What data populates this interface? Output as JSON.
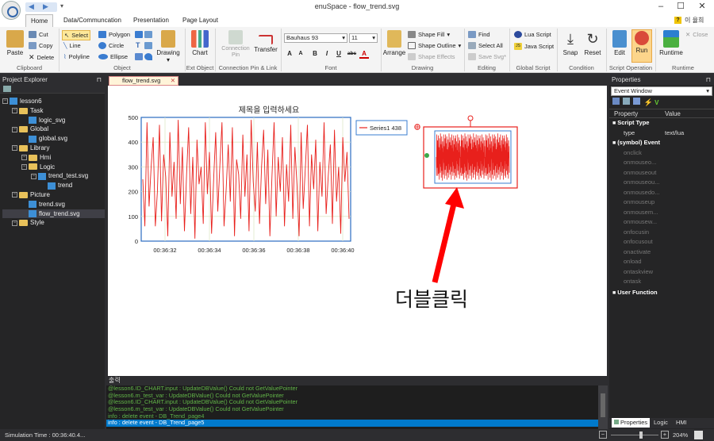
{
  "window": {
    "title": "enuSpace - flow_trend.svg",
    "user": "이 율희"
  },
  "ribbon_tabs": [
    "Home",
    "Data/Communcation",
    "Presentation",
    "Page Layout"
  ],
  "clipboard": {
    "paste": "Paste",
    "cut": "Cut",
    "copy": "Copy",
    "delete": "Delete",
    "label": "Clipboard"
  },
  "object": {
    "select": "Select",
    "line": "Line",
    "polyline": "Polyline",
    "polygon": "Polygon",
    "circle": "Circle",
    "ellipse": "Ellipse",
    "drawing": "Drawing",
    "label": "Object"
  },
  "ext_object": {
    "chart": "Chart",
    "label": "Ext Object"
  },
  "connection": {
    "pin": "Connection Pin",
    "transfer": "Transfer",
    "label": "Connection Pin & Link"
  },
  "font": {
    "family": "Bauhaus 93",
    "size": "11",
    "label": "Font",
    "grow": "A",
    "shrink": "A",
    "bold": "B",
    "italic": "I",
    "underline": "U",
    "strike": "abc",
    "color": "A"
  },
  "drawing": {
    "arrange": "Arrange",
    "shape_fill": "Shape Fill",
    "shape_outline": "Shape Outline",
    "shape_effects": "Shape Effects",
    "label": "Drawing"
  },
  "editing": {
    "find": "Find",
    "select_all": "Select All",
    "save_svg": "Save Svg*",
    "label": "Editing"
  },
  "global_script": {
    "lua": "Lua Script",
    "java": "Java Script",
    "label": "Global Script"
  },
  "condition": {
    "snap": "Snap",
    "reset": "Reset",
    "label": "Condition"
  },
  "script_op": {
    "edit": "Edit",
    "run": "Run",
    "label": "Script Operation"
  },
  "runtime": {
    "runtime": "Runtime",
    "close": "Close",
    "label": "Runtime"
  },
  "project": {
    "header": "Project Explorer",
    "tree": [
      {
        "label": "lesson6",
        "depth": 0,
        "icon": "project"
      },
      {
        "label": "Task",
        "depth": 1,
        "icon": "folder"
      },
      {
        "label": "logic_svg",
        "depth": 2,
        "icon": "file"
      },
      {
        "label": "Global",
        "depth": 1,
        "icon": "folder"
      },
      {
        "label": "global.svg",
        "depth": 2,
        "icon": "file"
      },
      {
        "label": "Library",
        "depth": 1,
        "icon": "folder"
      },
      {
        "label": "Hmi",
        "depth": 2,
        "icon": "folder"
      },
      {
        "label": "Logic",
        "depth": 2,
        "icon": "folder"
      },
      {
        "label": "trend_test.svg",
        "depth": 3,
        "icon": "file"
      },
      {
        "label": "trend",
        "depth": 4,
        "icon": "file"
      },
      {
        "label": "Picture",
        "depth": 1,
        "icon": "folder"
      },
      {
        "label": "trend.svg",
        "depth": 2,
        "icon": "file"
      },
      {
        "label": "flow_trend.svg",
        "depth": 2,
        "icon": "file"
      },
      {
        "label": "Style",
        "depth": 1,
        "icon": "folder"
      }
    ]
  },
  "doc_tab": "flow_trend.svg",
  "annotation": "더블클릭",
  "chart_data": {
    "type": "line",
    "title": "제목을 입력하세요",
    "xlabel": "",
    "ylabel": "",
    "ylim": [
      0,
      500
    ],
    "yticks": [
      0,
      100,
      200,
      300,
      400,
      500
    ],
    "xticks": [
      "00:36:32",
      "00:36:34",
      "00:36:36",
      "00:36:38",
      "00:36:40"
    ],
    "series": [
      {
        "name": "Series1 438",
        "color": "#e8201c",
        "values": [
          250,
          60,
          480,
          140,
          300,
          420,
          60,
          200,
          470,
          80,
          350,
          260,
          20,
          440,
          180,
          320,
          90,
          490,
          150,
          380,
          40,
          270,
          460,
          110,
          340,
          10,
          410,
          230,
          300,
          70,
          480,
          190,
          360,
          30,
          250,
          440,
          120,
          310,
          480,
          60,
          210,
          390,
          160,
          460,
          20,
          330,
          270,
          90,
          430,
          180,
          350,
          40,
          490,
          240,
          120,
          400,
          70,
          300,
          450,
          150,
          370,
          20,
          260,
          480,
          100,
          340,
          200,
          420,
          60,
          310,
          160,
          470,
          90,
          380,
          230,
          20,
          440,
          130,
          290,
          470,
          60,
          350,
          210,
          410,
          40,
          320,
          180,
          480,
          110,
          260,
          390,
          70,
          450,
          160,
          300,
          30,
          420,
          240,
          360,
          90
        ]
      }
    ]
  },
  "output": {
    "header": "출력",
    "lines": [
      "@lesson6.ID_CHART.input : UpdateDBValue() Could not GetValuePointer",
      "@lesson6.m_test_var : UpdateDBValue() Could not GetValuePointer",
      "@lesson6.ID_CHART.input : UpdateDBValue() Could not GetValuePointer",
      "@lesson6.m_test_var : UpdateDBValue() Could not GetValuePointer",
      "info : delete event - DB_Trend_page4",
      "info : delete event - DB_Trend_page5"
    ]
  },
  "properties": {
    "header": "Properties",
    "dropdown": "Event Window",
    "col_property": "Property",
    "col_value": "Value",
    "script_type_section": "Script Type",
    "type_key": "type",
    "type_val": "text/lua",
    "event_section": "(symbol) Event",
    "events": [
      "onclick",
      "onmouseo...",
      "onmouseout",
      "onmouseou...",
      "onmousedo...",
      "onmouseup",
      "onmousem...",
      "onmousew...",
      "onfocusin",
      "onfocusout",
      "onactivate",
      "onload",
      "ontaskview",
      "ontask"
    ],
    "user_function": "User Function",
    "bottom_tabs": [
      "Properties",
      "Logic",
      "HMI"
    ]
  },
  "status": {
    "text": "Simulation Time : 00:36:40.4...",
    "zoom": "204%"
  },
  "colors": {
    "accent": "#e8201c",
    "selection": "#007acc",
    "output_green": "#62b548"
  }
}
